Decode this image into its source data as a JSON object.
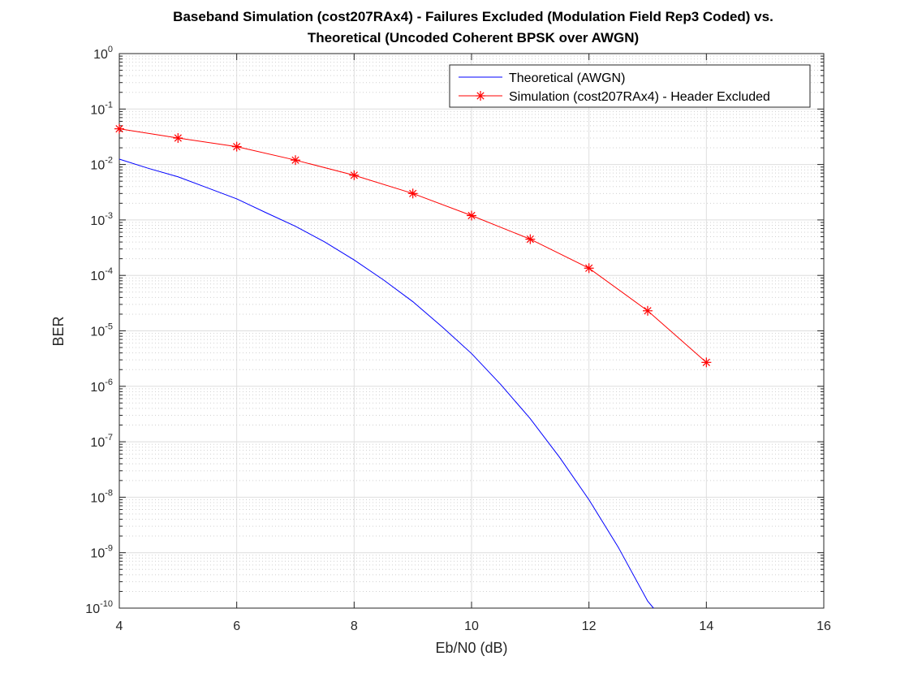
{
  "chart_data": {
    "type": "line",
    "title": [
      "Baseband Simulation (cost207RAx4) - Failures Excluded (Modulation Field Rep3 Coded) vs.",
      "Theoretical (Uncoded Coherent BPSK over AWGN)"
    ],
    "xlabel": "Eb/N0 (dB)",
    "ylabel": "BER",
    "xlim": [
      4,
      16
    ],
    "ylim": [
      1e-10,
      1
    ],
    "yscale": "log",
    "xticks": [
      4,
      6,
      8,
      10,
      12,
      14,
      16
    ],
    "yticks": [
      {
        "value": 1,
        "base": "10",
        "exp": "0"
      },
      {
        "value": 0.1,
        "base": "10",
        "exp": "-1"
      },
      {
        "value": 0.01,
        "base": "10",
        "exp": "-2"
      },
      {
        "value": 0.001,
        "base": "10",
        "exp": "-3"
      },
      {
        "value": 0.0001,
        "base": "10",
        "exp": "-4"
      },
      {
        "value": 1e-05,
        "base": "10",
        "exp": "-5"
      },
      {
        "value": 1e-06,
        "base": "10",
        "exp": "-6"
      },
      {
        "value": 1e-07,
        "base": "10",
        "exp": "-7"
      },
      {
        "value": 1e-08,
        "base": "10",
        "exp": "-8"
      },
      {
        "value": 1e-09,
        "base": "10",
        "exp": "-9"
      },
      {
        "value": 1e-10,
        "base": "10",
        "exp": "-10"
      }
    ],
    "grid": true,
    "minor_grid": true,
    "legend_position": "top-right",
    "series": [
      {
        "name": "Theoretical (AWGN)",
        "color": "#0000ff",
        "marker": "none",
        "x": [
          4,
          4.5,
          5,
          5.5,
          6,
          6.5,
          7,
          7.5,
          8,
          8.5,
          9,
          9.5,
          10,
          10.5,
          11,
          11.5,
          12,
          12.5,
          13,
          13.1
        ],
        "y": [
          0.0125,
          0.0085,
          0.006,
          0.0038,
          0.0024,
          0.00135,
          0.00077,
          0.0004,
          0.00019,
          8.3e-05,
          3.36e-05,
          1.18e-05,
          3.9e-06,
          1.07e-06,
          2.61e-07,
          5.23e-08,
          9.01e-09,
          1.25e-09,
          1.34e-10,
          1e-10
        ]
      },
      {
        "name": "Simulation (cost207RAx4) - Header Excluded",
        "color": "#ff0000",
        "marker": "asterisk",
        "x": [
          4,
          5,
          6,
          7,
          8,
          9,
          10,
          11,
          12,
          13,
          14
        ],
        "y": [
          0.044,
          0.03,
          0.021,
          0.012,
          0.0064,
          0.003,
          0.0012,
          0.00045,
          0.000135,
          2.3e-05,
          2.7e-06
        ]
      }
    ]
  }
}
